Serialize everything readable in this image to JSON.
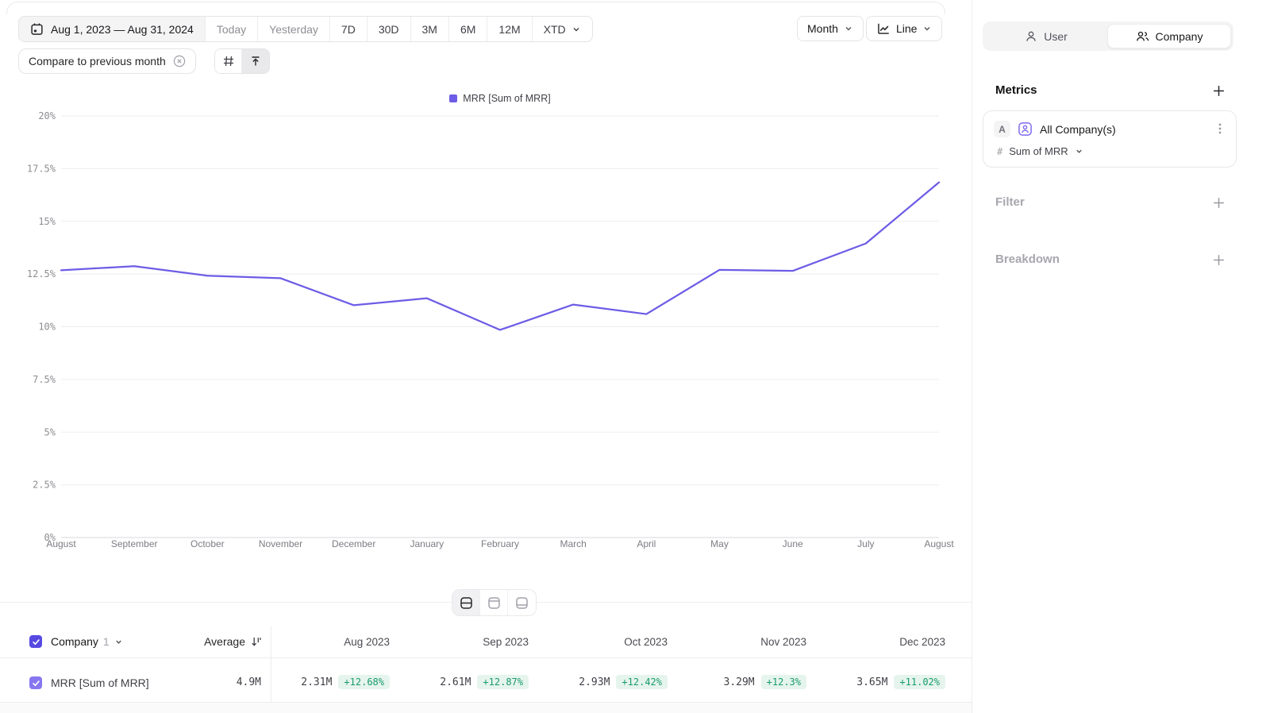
{
  "toolbar": {
    "date_range": "Aug 1, 2023 — Aug 31, 2024",
    "presets": [
      "Today",
      "Yesterday",
      "7D",
      "30D",
      "3M",
      "6M",
      "12M",
      "XTD"
    ],
    "compare_label": "Compare to previous month",
    "granularity": "Month",
    "chart_type_label": "Line"
  },
  "sidebar": {
    "toggle": {
      "user_label": "User",
      "company_label": "Company"
    },
    "metrics_title": "Metrics",
    "metric": {
      "badge": "A",
      "name": "All Company(s)",
      "measure_prefix": "#",
      "measure": "Sum of MRR"
    },
    "filter_label": "Filter",
    "breakdown_label": "Breakdown"
  },
  "chart_data": {
    "type": "line",
    "title": "MRR [Sum of MRR]",
    "legend": [
      "MRR [Sum of MRR]"
    ],
    "legend_position": "top-center",
    "grid": true,
    "x_labels": [
      "August",
      "September",
      "October",
      "November",
      "December",
      "January",
      "February",
      "March",
      "April",
      "May",
      "June",
      "July",
      "August"
    ],
    "series": [
      {
        "name": "MRR [Sum of MRR]",
        "color": "#6d5ce6",
        "values": [
          12.68,
          12.87,
          12.42,
          12.3,
          11.02,
          11.35,
          9.85,
          11.05,
          10.6,
          12.7,
          12.65,
          13.95,
          16.85
        ]
      }
    ],
    "ylim": [
      0,
      20
    ],
    "yticks": [
      [
        0,
        "0%"
      ],
      [
        2.5,
        "2.5%"
      ],
      [
        5,
        "5%"
      ],
      [
        7.5,
        "7.5%"
      ],
      [
        10,
        "10%"
      ],
      [
        12.5,
        "12.5%"
      ],
      [
        15,
        "15%"
      ],
      [
        17.5,
        "17.5%"
      ],
      [
        20,
        "20%"
      ]
    ],
    "ylabel": "",
    "xlabel": ""
  },
  "table": {
    "group_label": "Company",
    "group_count": "1",
    "average_label": "Average",
    "columns": [
      "Aug 2023",
      "Sep 2023",
      "Oct 2023",
      "Nov 2023",
      "Dec 2023"
    ],
    "rows": [
      {
        "name": "MRR [Sum of MRR]",
        "average": "4.9M",
        "cells": [
          {
            "value": "2.31M",
            "delta": "+12.68%"
          },
          {
            "value": "2.61M",
            "delta": "+12.87%"
          },
          {
            "value": "2.93M",
            "delta": "+12.42%"
          },
          {
            "value": "3.29M",
            "delta": "+12.3%"
          },
          {
            "value": "3.65M",
            "delta": "+11.02%"
          }
        ]
      }
    ]
  },
  "colors": {
    "accent_purple": "#6d5ce6",
    "checkbox_dark": "#564ae2",
    "checkbox_light": "#8677f0",
    "delta_green": "#189c6d",
    "delta_green_bg": "#e6f4ee"
  },
  "icons": {
    "calendar-icon": "calendar outline",
    "chevron-down-icon": "⌄",
    "close-circle-icon": "⊗",
    "grid-icon": "⌗",
    "arrow-up-to-line-icon": "↥",
    "line-chart-icon": "∿",
    "user-icon": "person outline",
    "company-icon": "two people outline",
    "plus-icon": "+",
    "kebab-icon": "⋮",
    "hash-icon": "#",
    "sort-icon": "↓ bars",
    "layout-split-icon": "▤ middle line",
    "layout-top-icon": "▤ top line",
    "layout-bottom-icon": "▤ bottom line",
    "checkbox-check-icon": "✓"
  }
}
